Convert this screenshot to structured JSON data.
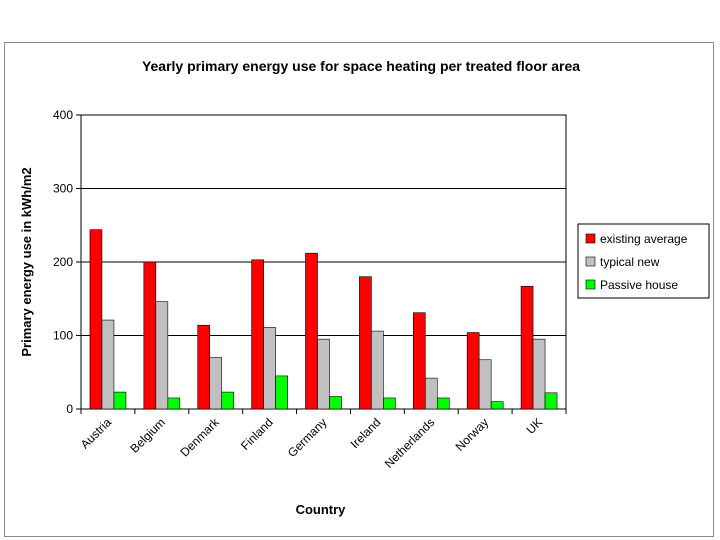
{
  "chart_data": {
    "type": "bar",
    "title": "Yearly primary energy use for space heating per treated floor area",
    "xlabel": "Country",
    "ylabel": "Primary energy use in kWh/m2",
    "ylim": [
      0,
      400
    ],
    "yticks": [
      0,
      100,
      200,
      300,
      400
    ],
    "grid": true,
    "legend_position": "right",
    "categories": [
      "Austria",
      "Belgium",
      "Denmark",
      "Finland",
      "Germany",
      "Ireland",
      "Netherlands",
      "Norway",
      "UK"
    ],
    "series": [
      {
        "name": "existing average",
        "color": "#ff0000",
        "values": [
          244,
          200,
          114,
          203,
          212,
          180,
          131,
          104,
          167
        ]
      },
      {
        "name": "typical new",
        "color": "#c0c0c0",
        "values": [
          121,
          146,
          70,
          111,
          95,
          106,
          42,
          67,
          95
        ]
      },
      {
        "name": "Passive house",
        "color": "#00ff00",
        "values": [
          23,
          15,
          23,
          45,
          17,
          15,
          15,
          10,
          22
        ]
      }
    ]
  }
}
